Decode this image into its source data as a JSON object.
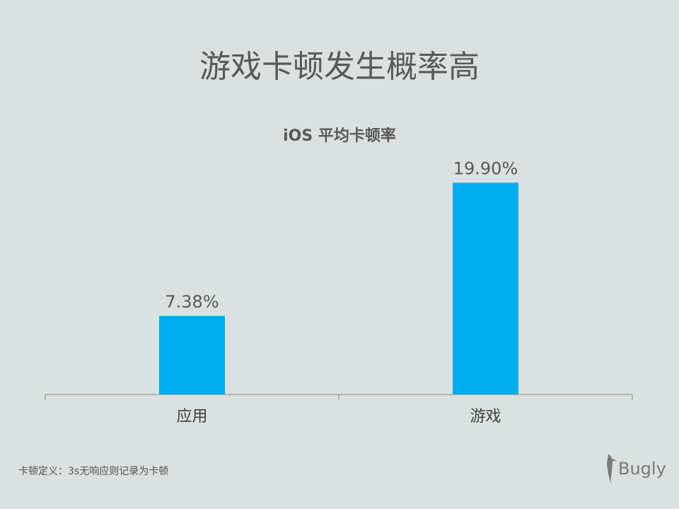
{
  "title": "游戏卡顿发生概率高",
  "footnote": "卡顿定义：3s无响应则记录为卡顿",
  "logo": "Bugly",
  "chart_data": {
    "type": "bar",
    "title": "iOS 平均卡顿率",
    "categories": [
      "应用",
      "游戏"
    ],
    "values": [
      7.38,
      19.9
    ],
    "data_labels": [
      "7.38%",
      "19.90%"
    ],
    "ylim": [
      0,
      20
    ],
    "grid": false,
    "bar_color": "#00aeef"
  }
}
